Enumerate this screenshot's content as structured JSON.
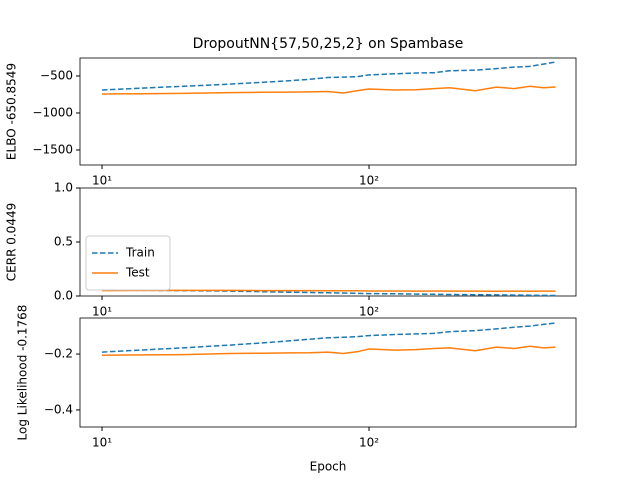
{
  "chart_data": [
    {
      "type": "line",
      "title": "DropoutNN{57,50,25,2} on Spambase",
      "ylabel": "ELBO -650.8549",
      "xscale": "log",
      "xlim": [
        8.27,
        596
      ],
      "xticks": [
        {
          "value": 10,
          "label": "10¹"
        },
        {
          "value": 100,
          "label": "10²"
        }
      ],
      "ylim": [
        -1703,
        -257
      ],
      "yticks": [
        {
          "value": -1500,
          "label": "−1500"
        },
        {
          "value": -1000,
          "label": "−1000"
        },
        {
          "value": -500,
          "label": "−500"
        }
      ],
      "x": [
        10,
        20,
        30,
        40,
        50,
        60,
        70,
        80,
        90,
        100,
        125,
        150,
        175,
        200,
        250,
        300,
        350,
        400,
        450,
        500
      ],
      "series": [
        {
          "color": "#1f77b4",
          "linestyle": "dashed",
          "values": [
            -689,
            -640,
            -610,
            -585,
            -565,
            -545,
            -520,
            -515,
            -510,
            -486,
            -470,
            -460,
            -455,
            -430,
            -420,
            -400,
            -380,
            -370,
            -340,
            -311
          ]
        },
        {
          "color": "#ff7f0e",
          "linestyle": "solid",
          "values": [
            -743,
            -735,
            -725,
            -720,
            -718,
            -715,
            -710,
            -730,
            -700,
            -676,
            -690,
            -685,
            -670,
            -660,
            -700,
            -650,
            -670,
            -640,
            -660,
            -649
          ]
        }
      ]
    },
    {
      "type": "line",
      "ylabel": "CERR 0.0449",
      "legend": "lower left",
      "xscale": "log",
      "xlim": [
        8.27,
        596
      ],
      "xticks": [
        {
          "value": 10,
          "label": "10¹"
        },
        {
          "value": 100,
          "label": "10²"
        }
      ],
      "ylim": [
        0,
        1
      ],
      "yticks": [
        {
          "value": 0,
          "label": "0.0"
        },
        {
          "value": 0.5,
          "label": "0.5"
        },
        {
          "value": 1,
          "label": "1.0"
        }
      ],
      "x": [
        10,
        20,
        30,
        40,
        50,
        60,
        70,
        80,
        90,
        100,
        125,
        150,
        175,
        200,
        250,
        300,
        350,
        400,
        450,
        500
      ],
      "series": [
        {
          "name": "Train",
          "color": "#1f77b4",
          "linestyle": "dashed",
          "values": [
            0.055,
            0.05,
            0.045,
            0.04,
            0.035,
            0.032,
            0.03,
            0.028,
            0.025,
            0.022,
            0.02,
            0.018,
            0.016,
            0.014,
            0.012,
            0.01,
            0.008,
            0.007,
            0.006,
            0.005
          ]
        },
        {
          "name": "Test",
          "color": "#ff7f0e",
          "linestyle": "solid",
          "values": [
            0.05,
            0.052,
            0.052,
            0.05,
            0.05,
            0.05,
            0.048,
            0.048,
            0.048,
            0.046,
            0.046,
            0.045,
            0.046,
            0.045,
            0.045,
            0.044,
            0.045,
            0.044,
            0.045,
            0.045
          ]
        }
      ]
    },
    {
      "type": "line",
      "ylabel": "Log Likelihood -0.1768",
      "xlabel": "Epoch",
      "xscale": "log",
      "xlim": [
        8.27,
        596
      ],
      "xticks": [
        {
          "value": 10,
          "label": "10¹"
        },
        {
          "value": 100,
          "label": "10²"
        }
      ],
      "ylim": [
        -0.461,
        -0.071
      ],
      "yticks": [
        {
          "value": -0.4,
          "label": "−0.4"
        },
        {
          "value": -0.2,
          "label": "−0.2"
        }
      ],
      "x": [
        10,
        20,
        30,
        40,
        50,
        60,
        70,
        80,
        90,
        100,
        125,
        150,
        175,
        200,
        250,
        300,
        350,
        400,
        450,
        500
      ],
      "series": [
        {
          "color": "#1f77b4",
          "linestyle": "dashed",
          "values": [
            -0.193,
            -0.178,
            -0.168,
            -0.16,
            -0.153,
            -0.147,
            -0.142,
            -0.14,
            -0.138,
            -0.134,
            -0.13,
            -0.128,
            -0.126,
            -0.12,
            -0.116,
            -0.11,
            -0.104,
            -0.1,
            -0.094,
            -0.089
          ]
        },
        {
          "color": "#ff7f0e",
          "linestyle": "solid",
          "values": [
            -0.204,
            -0.202,
            -0.198,
            -0.197,
            -0.196,
            -0.195,
            -0.193,
            -0.198,
            -0.192,
            -0.182,
            -0.186,
            -0.184,
            -0.18,
            -0.178,
            -0.188,
            -0.175,
            -0.18,
            -0.172,
            -0.178,
            -0.175
          ]
        }
      ]
    }
  ]
}
